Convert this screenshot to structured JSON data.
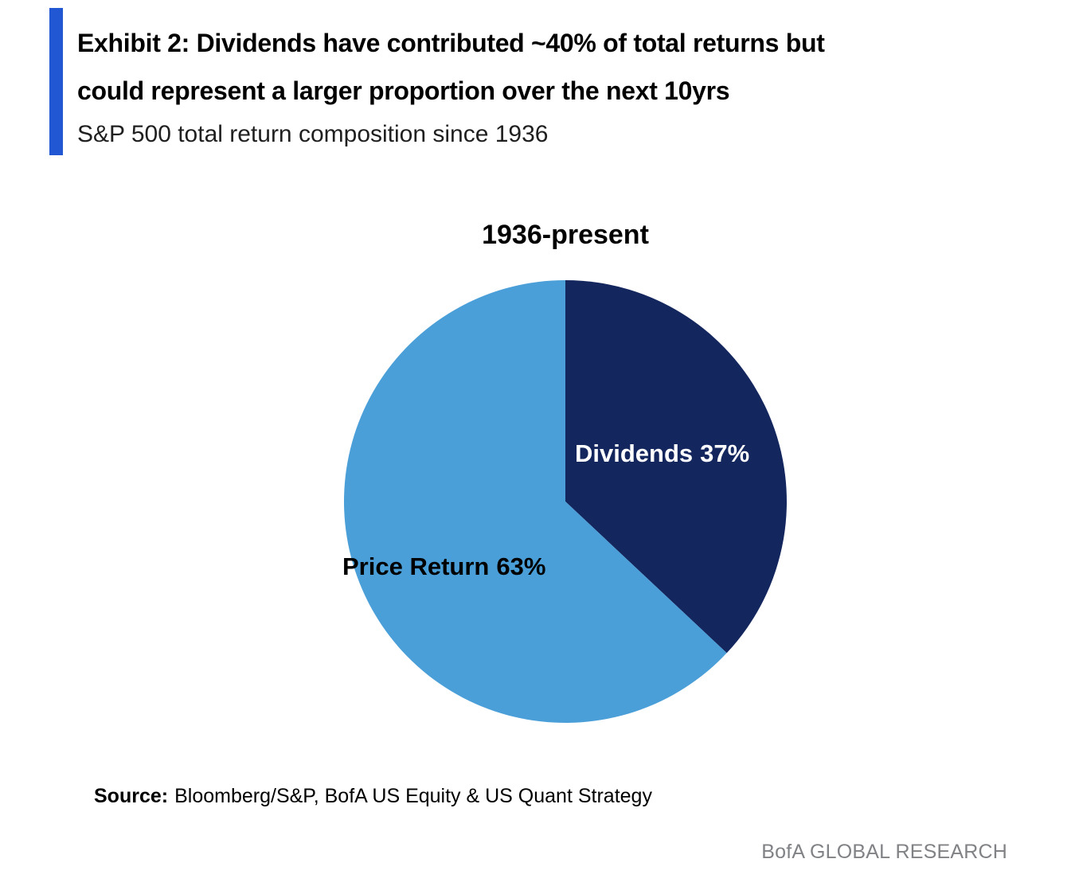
{
  "accent_color": "#2257d4",
  "header": {
    "title_line1": "Exhibit 2: Dividends have contributed ~40% of total returns but",
    "title_line2": "could represent a larger proportion over the next 10yrs",
    "subtitle": "S&P 500 total return composition since 1936"
  },
  "chart_data": {
    "type": "pie",
    "title": "1936-present",
    "labels": [
      "Dividends",
      "Price Return"
    ],
    "values": [
      37,
      63
    ],
    "colors": [
      "#13265e",
      "#4a9fd8"
    ],
    "start_angle": "12-o-clock",
    "direction": "clockwise",
    "legend_position": "none",
    "slice_labels": [
      {
        "text": "Dividends",
        "value_text": "37%",
        "text_color": "#ffffff"
      },
      {
        "text": "Price Return",
        "value_text": "63%",
        "text_color": "#000000"
      }
    ]
  },
  "footer": {
    "source_label": "Source:",
    "source_text": "Bloomberg/S&P, BofA US Equity & US Quant Strategy",
    "brand": "BofA GLOBAL RESEARCH"
  }
}
